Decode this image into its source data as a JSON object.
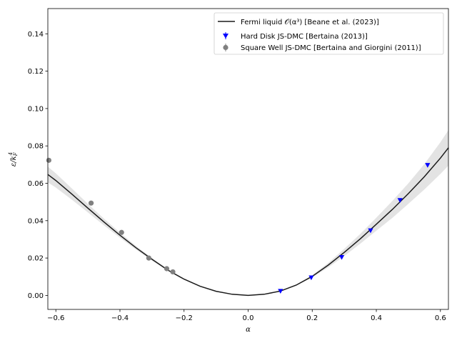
{
  "chart_data": {
    "type": "scatter",
    "xlabel": "α",
    "ylabel": "ε/k_F^4",
    "xlim": [
      -0.625,
      0.625
    ],
    "ylim": [
      -0.0075,
      0.1535
    ],
    "x_ticks": [
      -0.6,
      -0.4,
      -0.2,
      0.0,
      0.2,
      0.4,
      0.6
    ],
    "x_tick_labels": [
      "−0.6",
      "−0.4",
      "−0.2",
      "0.0",
      "0.2",
      "0.4",
      "0.6"
    ],
    "y_ticks": [
      0.0,
      0.02,
      0.04,
      0.06,
      0.08,
      0.1,
      0.12,
      0.14
    ],
    "y_tick_labels": [
      "0.00",
      "0.02",
      "0.04",
      "0.06",
      "0.08",
      "0.10",
      "0.12",
      "0.14"
    ],
    "grid": false,
    "legend_placement": "top-right",
    "series": [
      {
        "name": "Fermi liquid 𝒪(α³) [Beane et al. (2023)]",
        "kind": "line",
        "color": "#1a1a1a",
        "band_color": "#d9d9d9",
        "x": [
          -0.625,
          -0.6,
          -0.55,
          -0.5,
          -0.45,
          -0.4,
          -0.35,
          -0.3,
          -0.25,
          -0.2,
          -0.15,
          -0.1,
          -0.05,
          0.0,
          0.05,
          0.1,
          0.15,
          0.2,
          0.25,
          0.3,
          0.35,
          0.4,
          0.45,
          0.5,
          0.55,
          0.6,
          0.625
        ],
        "y": [
          0.0647,
          0.0615,
          0.0542,
          0.0467,
          0.0393,
          0.0322,
          0.0255,
          0.0193,
          0.0135,
          0.0087,
          0.0049,
          0.0022,
          0.0006,
          0.0,
          0.0006,
          0.0023,
          0.0055,
          0.0102,
          0.0162,
          0.023,
          0.0303,
          0.0381,
          0.046,
          0.0545,
          0.0635,
          0.0735,
          0.079
        ],
        "band_lower": [
          0.0605,
          0.0577,
          0.0512,
          0.0444,
          0.0375,
          0.0308,
          0.0245,
          0.0186,
          0.0131,
          0.0085,
          0.0048,
          0.0021,
          0.0006,
          0.0,
          0.0006,
          0.0022,
          0.0052,
          0.0096,
          0.015,
          0.0211,
          0.0277,
          0.0346,
          0.0415,
          0.049,
          0.0567,
          0.065,
          0.0695
        ],
        "band_upper": [
          0.0689,
          0.0653,
          0.0572,
          0.049,
          0.0411,
          0.0336,
          0.0265,
          0.02,
          0.0139,
          0.0089,
          0.005,
          0.0023,
          0.0006,
          0.0,
          0.0006,
          0.0024,
          0.0058,
          0.0108,
          0.0174,
          0.0249,
          0.0329,
          0.0416,
          0.0505,
          0.06,
          0.0703,
          0.082,
          0.0885
        ]
      },
      {
        "name": "Hard Disk JS-DMC [Bertaina (2013)]",
        "kind": "scatter",
        "marker": "triangle-down",
        "color": "#0000ff",
        "x": [
          0.101,
          0.197,
          0.292,
          0.382,
          0.474,
          0.56
        ],
        "y": [
          0.0023,
          0.0095,
          0.0204,
          0.0347,
          0.0509,
          0.0697
        ]
      },
      {
        "name": "Square Well JS-DMC [Bertaina and Giorgini (2011)]",
        "kind": "scatter",
        "marker": "circle",
        "color": "#808080",
        "x": [
          -0.622,
          -0.49,
          -0.395,
          -0.31,
          -0.254,
          -0.235
        ],
        "y": [
          0.0723,
          0.0494,
          0.0337,
          0.02,
          0.0143,
          0.0126
        ]
      }
    ]
  }
}
